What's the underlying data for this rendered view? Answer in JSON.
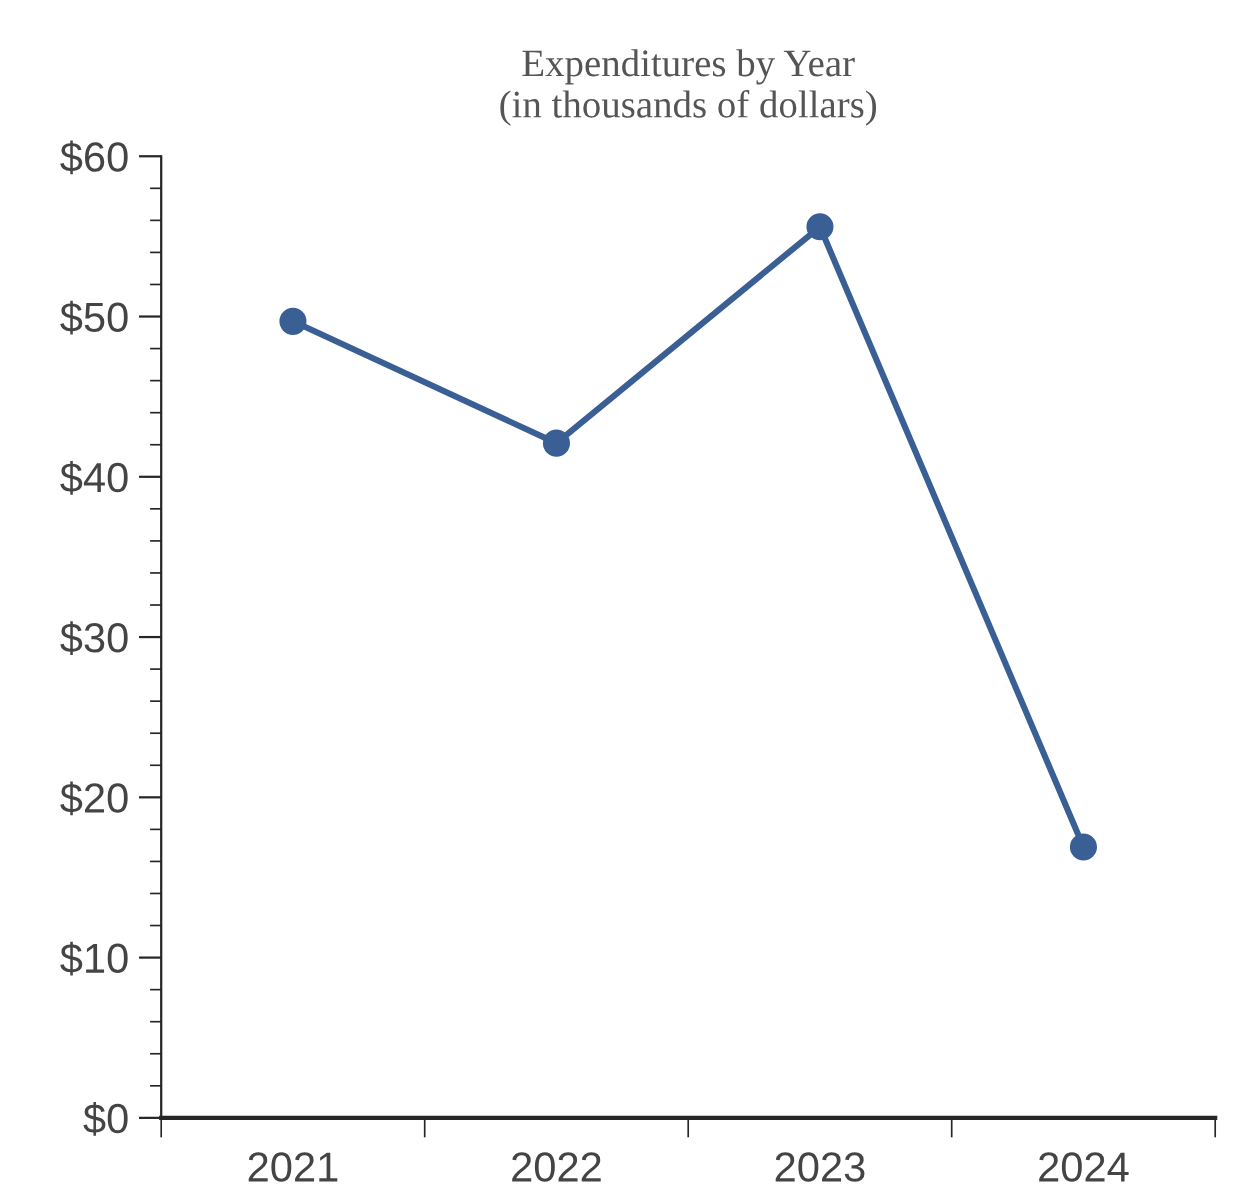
{
  "chart_data": {
    "type": "line",
    "title": "Expenditures by Year\n(in thousands of dollars)",
    "categories": [
      "2021",
      "2022",
      "2023",
      "2024"
    ],
    "series": [
      {
        "color": "#3a5f95",
        "values": [
          49.7,
          42.1,
          55.6,
          16.9
        ]
      }
    ],
    "ylim": [
      0,
      60
    ],
    "yticks": [
      {
        "value": 0,
        "label": "$0"
      },
      {
        "value": 10,
        "label": "$10"
      },
      {
        "value": 20,
        "label": "$20"
      },
      {
        "value": 30,
        "label": "$30"
      },
      {
        "value": 40,
        "label": "$40"
      },
      {
        "value": 50,
        "label": "$50"
      },
      {
        "value": 60,
        "label": "$60"
      }
    ],
    "grid": false,
    "legend": false,
    "marker": "circle",
    "line_style": "solid"
  }
}
